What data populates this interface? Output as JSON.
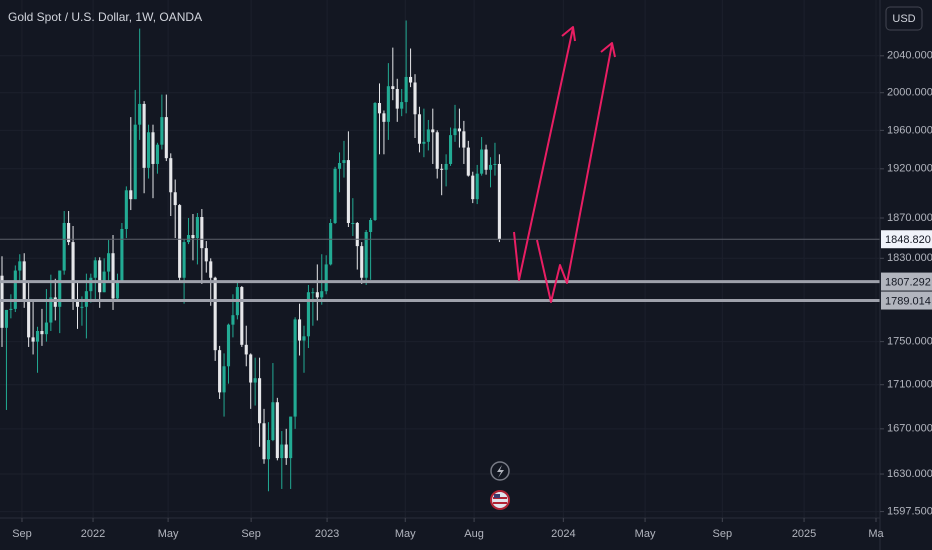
{
  "chart_data": {
    "type": "candlestick",
    "title": "Gold Spot / U.S. Dollar, 1W, OANDA",
    "currency": "USD",
    "log_scale": true,
    "grid": true,
    "up_color": "#22ab94",
    "down_color": "#e6e7ea",
    "ylim": [
      1592,
      2102
    ],
    "yticks": [
      {
        "value": 1597.5,
        "label": "1597.500"
      },
      {
        "value": 1630,
        "label": "1630.000"
      },
      {
        "value": 1670,
        "label": "1670.000"
      },
      {
        "value": 1710,
        "label": "1710.000"
      },
      {
        "value": 1750,
        "label": "1750.000"
      },
      {
        "value": 1830,
        "label": "1830.000"
      },
      {
        "value": 1870,
        "label": "1870.000"
      },
      {
        "value": 1920,
        "label": "1920.000"
      },
      {
        "value": 1960,
        "label": "1960.000"
      },
      {
        "value": 2000,
        "label": "2000.000"
      },
      {
        "value": 2040,
        "label": "2040.000"
      }
    ],
    "xlim": [
      -0.45,
      197.7
    ],
    "xticks": [
      {
        "value": 4.5,
        "label": "Sep"
      },
      {
        "value": 20.5,
        "label": "2022"
      },
      {
        "value": 37.4,
        "label": "May"
      },
      {
        "value": 56.1,
        "label": "Sep"
      },
      {
        "value": 73.2,
        "label": "2023"
      },
      {
        "value": 90.8,
        "label": "May"
      },
      {
        "value": 106.3,
        "label": "Aug"
      },
      {
        "value": 126.4,
        "label": "2024"
      },
      {
        "value": 144.8,
        "label": "May"
      },
      {
        "value": 162.2,
        "label": "Sep"
      },
      {
        "value": 180.6,
        "label": "2025"
      },
      {
        "value": 196.8,
        "label": "Ma"
      }
    ],
    "price_lines": [
      {
        "value": 1848.82,
        "label": "1848.820"
      },
      {
        "value": 1807.292,
        "label": "1807.292"
      },
      {
        "value": 1789.014,
        "label": "1789.014"
      }
    ],
    "open": [
      1813,
      1763,
      1780,
      1781,
      1818,
      1827,
      1788,
      1754,
      1750,
      1760,
      1757,
      1768,
      1792,
      1783,
      1818,
      1865,
      1846,
      1788,
      1783,
      1783,
      1798,
      1811,
      1828,
      1797,
      1817,
      1835,
      1791,
      1808,
      1859,
      1898,
      1889,
      1966,
      1988,
      1921,
      1958,
      1925,
      1945,
      1974,
      1931,
      1896,
      1883,
      1811,
      1846,
      1853,
      1850,
      1871,
      1840,
      1827,
      1811,
      1742,
      1703,
      1727,
      1766,
      1775,
      1802,
      1747,
      1738,
      1712,
      1716,
      1675,
      1643,
      1660,
      1694,
      1644,
      1656,
      1644,
      1681,
      1771,
      1751,
      1755,
      1797,
      1797,
      1792,
      1798,
      1824,
      1865,
      1920,
      1926,
      1929,
      1865,
      1865,
      1842,
      1811,
      1856,
      1868,
      1989,
      1978,
      1969,
      2007,
      2004,
      1983,
      1990,
      2017,
      2011,
      1977,
      1946,
      1948,
      1961,
      1958,
      1920,
      1919,
      1925,
      1955,
      1962,
      1959,
      1942,
      1913,
      1889,
      1915,
      1940,
      1919,
      1924,
      1925
    ],
    "high": [
      1832,
      1780,
      1795,
      1823,
      1834,
      1835,
      1808,
      1788,
      1764,
      1781,
      1800,
      1814,
      1810,
      1818,
      1877,
      1877,
      1862,
      1808,
      1793,
      1815,
      1815,
      1831,
      1831,
      1830,
      1848,
      1853,
      1815,
      1865,
      1902,
      1974,
      2003,
      2070,
      1991,
      1966,
      1966,
      1947,
      1998,
      1998,
      1936,
      1909,
      1884,
      1849,
      1870,
      1874,
      1875,
      1879,
      1847,
      1830,
      1812,
      1746,
      1739,
      1767,
      1795,
      1808,
      1803,
      1765,
      1739,
      1735,
      1735,
      1688,
      1676,
      1730,
      1698,
      1668,
      1670,
      1681,
      1773,
      1786,
      1765,
      1804,
      1801,
      1824,
      1834,
      1833,
      1869,
      1922,
      1937,
      1949,
      1959,
      1890,
      1866,
      1846,
      1858,
      1870,
      1990,
      2010,
      1981,
      2032,
      2049,
      2015,
      2004,
      2079,
      2048,
      2020,
      1985,
      1983,
      1971,
      1983,
      1960,
      1925,
      1935,
      1963,
      1987,
      1983,
      1970,
      1949,
      1917,
      1924,
      1953,
      1945,
      1932,
      1947,
      1935
    ],
    "low": [
      1745,
      1687,
      1772,
      1778,
      1806,
      1782,
      1745,
      1738,
      1721,
      1746,
      1750,
      1760,
      1770,
      1758,
      1814,
      1843,
      1780,
      1762,
      1765,
      1753,
      1787,
      1790,
      1782,
      1797,
      1806,
      1780,
      1788,
      1807,
      1850,
      1878,
      1889,
      1950,
      1895,
      1910,
      1890,
      1915,
      1940,
      1928,
      1872,
      1850,
      1807,
      1786,
      1844,
      1828,
      1824,
      1805,
      1816,
      1784,
      1732,
      1697,
      1681,
      1711,
      1754,
      1771,
      1745,
      1727,
      1688,
      1691,
      1654,
      1639,
      1615,
      1659,
      1642,
      1617,
      1638,
      1617,
      1670,
      1737,
      1721,
      1744,
      1765,
      1770,
      1785,
      1795,
      1823,
      1864,
      1896,
      1911,
      1861,
      1852,
      1819,
      1805,
      1804,
      1809,
      1867,
      1935,
      1935,
      1950,
      1992,
      1969,
      1975,
      1978,
      2006,
      1952,
      1937,
      1932,
      1939,
      1925,
      1910,
      1893,
      1902,
      1923,
      1948,
      1942,
      1925,
      1912,
      1885,
      1884,
      1913,
      1914,
      1901,
      1913,
      1846
    ],
    "close": [
      1763,
      1780,
      1781,
      1818,
      1827,
      1788,
      1754,
      1750,
      1760,
      1757,
      1768,
      1792,
      1783,
      1818,
      1865,
      1846,
      1788,
      1783,
      1783,
      1798,
      1811,
      1828,
      1797,
      1817,
      1835,
      1791,
      1808,
      1859,
      1898,
      1889,
      1966,
      1988,
      1921,
      1958,
      1925,
      1945,
      1974,
      1931,
      1896,
      1883,
      1811,
      1846,
      1853,
      1850,
      1871,
      1840,
      1827,
      1811,
      1742,
      1703,
      1727,
      1766,
      1775,
      1802,
      1747,
      1738,
      1712,
      1716,
      1675,
      1643,
      1660,
      1694,
      1644,
      1656,
      1644,
      1681,
      1771,
      1751,
      1755,
      1797,
      1797,
      1792,
      1798,
      1824,
      1865,
      1920,
      1926,
      1929,
      1865,
      1865,
      1842,
      1811,
      1856,
      1868,
      1989,
      1978,
      1969,
      2007,
      2004,
      1983,
      1990,
      2017,
      2011,
      1977,
      1946,
      1948,
      1961,
      1958,
      1920,
      1919,
      1925,
      1955,
      1962,
      1959,
      1942,
      1913,
      1889,
      1915,
      1940,
      1919,
      1924,
      1925,
      1848.82
    ]
  }
}
